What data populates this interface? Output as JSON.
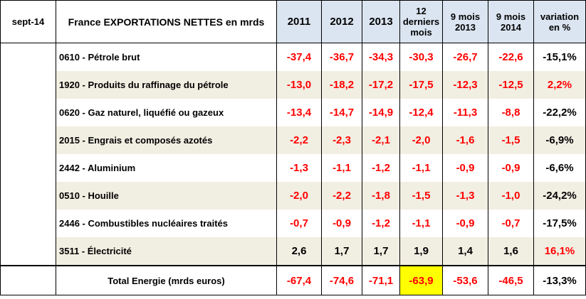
{
  "header": {
    "date": "sept-14",
    "title": "France EXPORTATIONS NETTES en mrds",
    "columns": [
      "2011",
      "2012",
      "2013",
      "12 derniers mois",
      "9 mois 2013",
      "9 mois 2014",
      "variation en %"
    ]
  },
  "rows": [
    {
      "label": "0610 - Pétrole brut",
      "values": [
        "-37,4",
        "-36,7",
        "-34,3",
        "-30,3",
        "-26,7",
        "-22,6",
        "-15,1%"
      ]
    },
    {
      "label": "1920 - Produits du raffinage du pétrole",
      "values": [
        "-13,0",
        "-18,2",
        "-17,2",
        "-17,5",
        "-12,3",
        "-12,5",
        "2,2%"
      ]
    },
    {
      "label": "0620 - Gaz naturel, liquéfié ou gazeux",
      "values": [
        "-13,4",
        "-14,7",
        "-14,9",
        "-12,4",
        "-11,3",
        "-8,8",
        "-22,2%"
      ]
    },
    {
      "label": "2015 - Engrais et composés azotés",
      "values": [
        "-2,2",
        "-2,3",
        "-2,1",
        "-2,0",
        "-1,6",
        "-1,5",
        "-6,9%"
      ]
    },
    {
      "label": "2442 - Aluminium",
      "values": [
        "-1,3",
        "-1,1",
        "-1,2",
        "-1,1",
        "-0,9",
        "-0,9",
        "-6,6%"
      ]
    },
    {
      "label": "0510 - Houille",
      "values": [
        "-2,0",
        "-2,2",
        "-1,8",
        "-1,5",
        "-1,3",
        "-1,0",
        "-24,2%"
      ]
    },
    {
      "label": "2446 - Combustibles nucléaires traités",
      "values": [
        "-0,7",
        "-0,9",
        "-1,2",
        "-1,1",
        "-0,9",
        "-0,7",
        "-17,5%"
      ]
    },
    {
      "label": "3511 - Électricité",
      "values": [
        "2,6",
        "1,7",
        "1,7",
        "1,9",
        "1,4",
        "1,6",
        "16,1%"
      ]
    }
  ],
  "total": {
    "label": "Total Energie (mrds euros)",
    "values": [
      "-67,4",
      "-74,6",
      "-71,1",
      "-63,9",
      "-53,6",
      "-46,5",
      "-13,3%"
    ]
  },
  "colors": {
    "negative": "#ff0000",
    "header_bg": "#dbe5f1",
    "stripe_bg": "#f1eee2",
    "highlight": "#ffff00"
  }
}
